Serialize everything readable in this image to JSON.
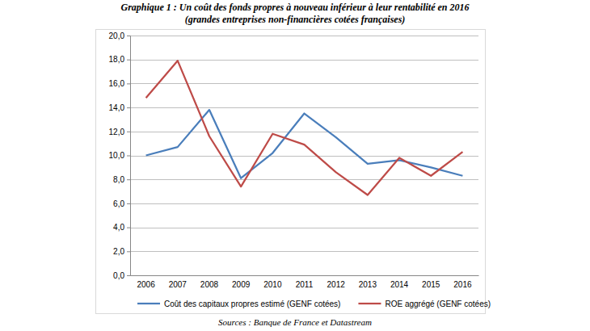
{
  "chart_data": {
    "type": "line",
    "title": "Graphique 1 : Un coût des fonds propres à nouveau inférieur à leur rentabilité en 2016",
    "subtitle": "(grandes entreprises non-financières cotées françaises)",
    "source": "Sources : Banque de France et Datastream",
    "categories": [
      "2006",
      "2007",
      "2008",
      "2009",
      "2010",
      "2011",
      "2012",
      "2013",
      "2014",
      "2015",
      "2016"
    ],
    "series": [
      {
        "name": "Coût des capitaux propres estimé (GENF cotées)",
        "color": "#4a7ebb",
        "values": [
          10.0,
          10.7,
          13.8,
          8.1,
          10.2,
          13.5,
          11.5,
          9.3,
          9.6,
          9.0,
          8.3
        ]
      },
      {
        "name": "ROE aggrégé (GENF cotées)",
        "color": "#be4b48",
        "values": [
          14.8,
          17.9,
          11.6,
          7.4,
          11.8,
          10.9,
          8.6,
          6.7,
          9.8,
          8.3,
          10.3
        ]
      }
    ],
    "ylim": [
      0,
      20
    ],
    "yticks": [
      {
        "value": 0,
        "label": "0,0"
      },
      {
        "value": 2,
        "label": "2,0"
      },
      {
        "value": 4,
        "label": "4,0"
      },
      {
        "value": 6,
        "label": "6,0"
      },
      {
        "value": 8,
        "label": "8,0"
      },
      {
        "value": 10,
        "label": "10,0"
      },
      {
        "value": 12,
        "label": "12,0"
      },
      {
        "value": 14,
        "label": "14,0"
      },
      {
        "value": 16,
        "label": "16,0"
      },
      {
        "value": 18,
        "label": "18,0"
      },
      {
        "value": 20,
        "label": "20,0"
      }
    ],
    "grid": true,
    "legend": "bottom"
  }
}
